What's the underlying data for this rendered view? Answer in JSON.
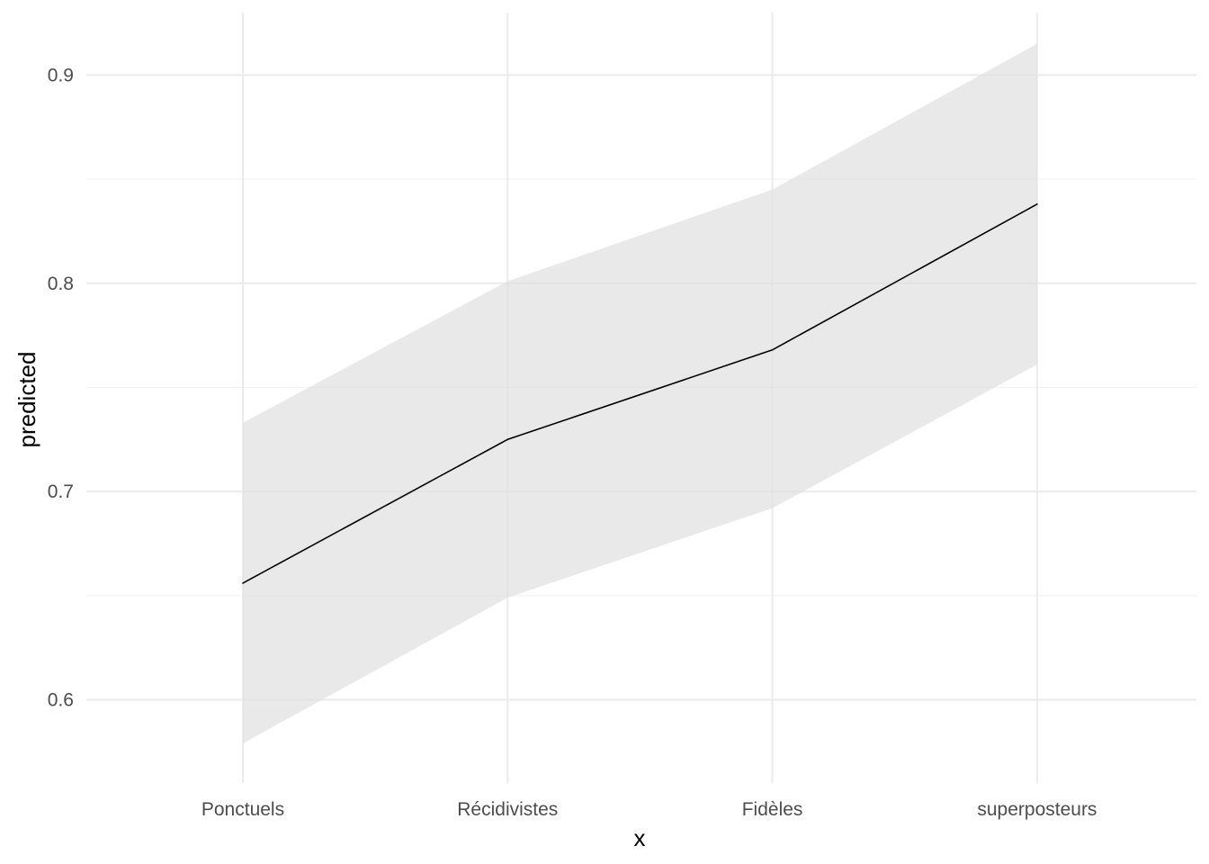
{
  "chart_data": {
    "type": "line",
    "title": "",
    "xlabel": "x",
    "ylabel": "predicted",
    "categories": [
      "Ponctuels",
      "Récidivistes",
      "Fidèles",
      "superposteurs"
    ],
    "series": [
      {
        "name": "predicted",
        "values": [
          0.656,
          0.725,
          0.768,
          0.838
        ],
        "ci_low": [
          0.579,
          0.649,
          0.692,
          0.761
        ],
        "ci_high": [
          0.733,
          0.801,
          0.845,
          0.915
        ]
      }
    ],
    "ylim": [
      0.56,
      0.93
    ],
    "y_ticks": [
      0.6,
      0.7,
      0.8,
      0.9
    ],
    "y_tick_labels": [
      "0.6",
      "0.7",
      "0.8",
      "0.9"
    ],
    "y_minor_ticks": [
      0.65,
      0.75,
      0.85
    ],
    "grid": true,
    "legend": "none",
    "colors": {
      "line": "#000000",
      "ribbon": "#e0e0e0",
      "grid_major": "#ebebeb",
      "grid_minor": "#f2f2f2",
      "tick_text": "#4d4d4d"
    }
  }
}
